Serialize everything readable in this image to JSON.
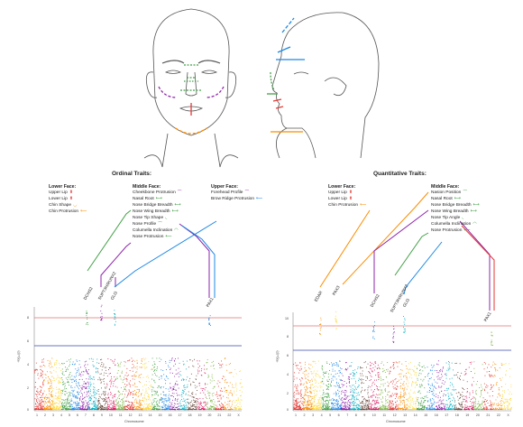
{
  "headers": {
    "ordinal": "Ordinal Traits:",
    "quantitative": "Quantitative Traits:"
  },
  "ordinal": {
    "lower_face": {
      "title": "Lower Face:",
      "traits": [
        "Upper Lip",
        "Lower Lip",
        "Chin Shape",
        "Chin Protrusion"
      ]
    },
    "middle_face": {
      "title": "Middle Face:",
      "traits": [
        "Cheekbone Protrusion",
        "Nasal Root",
        "Nose Bridge Breadth",
        "Nose Wing Breadth",
        "Nose Tip Shape",
        "Nose Profile",
        "Columella Inclination",
        "Nose Protrusion"
      ]
    },
    "upper_face": {
      "title": "Upper Face:",
      "traits": [
        "Forehead Profile",
        "Brow Ridge Protrusion"
      ]
    },
    "genes": [
      "DCHS2",
      "SUPT3H/RUNX2",
      "GLI3",
      "PAX1"
    ]
  },
  "quantitative": {
    "lower_face": {
      "title": "Lower Face:",
      "traits": [
        "Upper Lip",
        "Lower Lip",
        "Chin Protrusion"
      ]
    },
    "middle_face": {
      "title": "Middle Face:",
      "traits": [
        "Nasion Position",
        "Nasal Root",
        "Nose Bridge Breadth",
        "Nose Wing Breadth",
        "Nose Tip Angle",
        "Columella Inclination",
        "Nose Protrusion"
      ]
    },
    "genes": [
      "EDAR",
      "PAX3",
      "DCHS2",
      "SUPT3H/RUNX2",
      "GLI3",
      "PAX1"
    ]
  },
  "plot": {
    "ylabel": "-log₁₀(p)",
    "xlabel": "Chromosome",
    "left_yticks": [
      "8",
      "6",
      "4",
      "2",
      "0"
    ],
    "right_yticks": [
      "10",
      "8",
      "6",
      "4",
      "2",
      "0"
    ],
    "chromosomes": [
      "1",
      "2",
      "3",
      "4",
      "5",
      "6",
      "7",
      "8",
      "9",
      "10",
      "11",
      "12",
      "13",
      "14",
      "15",
      "16",
      "17",
      "18",
      "19",
      "20",
      "21",
      "22",
      "X"
    ],
    "colors": [
      "#e53935",
      "#fb8c00",
      "#fdd835",
      "#43a047",
      "#1e88e5",
      "#8e24aa",
      "#00acc1",
      "#6d4c41",
      "#d81b60",
      "#7cb342"
    ]
  },
  "icons": {
    "lip": "arrow-up-down-icon",
    "width": "double-arrow-icon",
    "curve": "curve-icon"
  }
}
